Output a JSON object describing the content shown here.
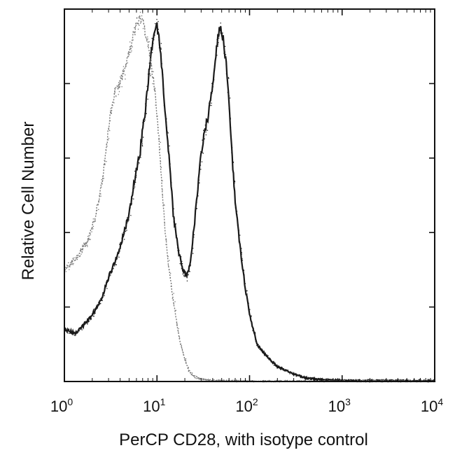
{
  "chart_data": {
    "type": "area",
    "title": "",
    "xlabel": "PerCP CD28, with isotype control",
    "ylabel": "Relative Cell Number",
    "x_scale": "log",
    "xlim": [
      1,
      10000
    ],
    "ylim": [
      0,
      100
    ],
    "grid": false,
    "x_ticks": [
      {
        "base": "10",
        "exp": "0",
        "value": 1
      },
      {
        "base": "10",
        "exp": "1",
        "value": 10
      },
      {
        "base": "10",
        "exp": "2",
        "value": 100
      },
      {
        "base": "10",
        "exp": "3",
        "value": 1000
      },
      {
        "base": "10",
        "exp": "4",
        "value": 10000
      }
    ],
    "y_ticks": [
      0,
      20,
      40,
      60,
      80,
      100
    ],
    "series": [
      {
        "role": "stained",
        "color": "#1a1a1a",
        "x": [
          1.0,
          1.3,
          1.6,
          2.0,
          2.5,
          3.0,
          3.6,
          4.2,
          5.0,
          5.8,
          6.6,
          7.4,
          8.2,
          9.0,
          10.0,
          11.0,
          12.0,
          13.5,
          15.0,
          17.0,
          19.0,
          21.0,
          23.0,
          26.0,
          29.0,
          32.0,
          36.0,
          40.0,
          44.0,
          48.0,
          52.0,
          56.0,
          60.0,
          65.0,
          70.0,
          80.0,
          90.0,
          100.0,
          120.0,
          150.0,
          200.0,
          250.0,
          300.0,
          400.0,
          600.0,
          1000.0,
          10000.0
        ],
        "y": [
          14,
          13,
          15,
          18,
          22,
          28,
          33,
          38,
          45,
          55,
          62,
          72,
          83,
          92,
          96,
          88,
          75,
          60,
          45,
          35,
          30,
          28,
          32,
          45,
          58,
          66,
          72,
          80,
          90,
          95,
          92,
          85,
          75,
          60,
          48,
          35,
          25,
          18,
          10,
          7,
          4,
          3,
          2,
          1,
          0.5,
          0.3,
          0.2
        ]
      },
      {
        "role": "isotype control",
        "color": "#777777",
        "x": [
          1.0,
          1.2,
          1.5,
          1.8,
          2.2,
          2.6,
          3.0,
          3.5,
          4.0,
          4.6,
          5.2,
          5.8,
          6.5,
          7.2,
          8.0,
          8.7,
          9.5,
          10.5,
          11.5,
          12.5,
          13.5,
          15.0,
          16.5,
          18.0,
          20.0,
          22.0,
          25.0,
          28.0,
          32.0,
          40.0,
          60.0,
          100.0,
          10000.0
        ],
        "y": [
          30,
          32,
          35,
          38,
          45,
          55,
          68,
          78,
          80,
          85,
          90,
          95,
          98,
          96,
          90,
          85,
          78,
          65,
          50,
          38,
          30,
          22,
          15,
          10,
          6,
          3,
          1.5,
          1,
          0.5,
          0.3,
          0.2,
          0.1,
          0.1
        ]
      }
    ]
  }
}
